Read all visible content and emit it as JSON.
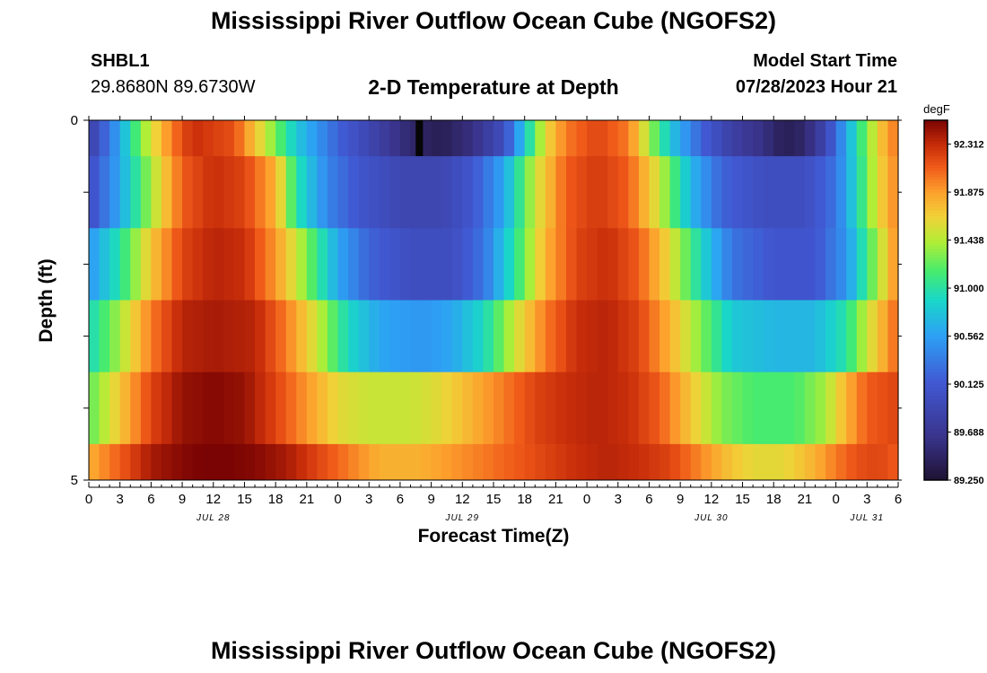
{
  "header": {
    "title": "Mississippi River Outflow Ocean Cube (NGOFS2)",
    "station_id": "SHBL1",
    "station_coords": "29.8680N  89.6730W",
    "subtitle": "2-D Temperature at Depth",
    "model_start_label": "Model Start Time",
    "model_start_value": "07/28/2023 Hour 21"
  },
  "footer": {
    "title_repeat": "Mississippi River Outflow Ocean Cube (NGOFS2)"
  },
  "chart_data": {
    "type": "heatmap",
    "xlabel": "Forecast Time(Z)",
    "ylabel": "Depth (ft)",
    "x_tick_labels": [
      "0",
      "3",
      "6",
      "9",
      "12",
      "15",
      "18",
      "21",
      "0",
      "3",
      "6",
      "9",
      "12",
      "15",
      "18",
      "21",
      "0",
      "3",
      "6",
      "9",
      "12",
      "15",
      "18",
      "21",
      "0",
      "3",
      "6"
    ],
    "x_hours_range": [
      0,
      78
    ],
    "date_labels": [
      {
        "label": "JUL 28",
        "hour": 12
      },
      {
        "label": "JUL 29",
        "hour": 36
      },
      {
        "label": "JUL 30",
        "hour": 60
      },
      {
        "label": "JUL 31",
        "hour": 75
      }
    ],
    "y_tick_labels": [
      "0",
      "5"
    ],
    "ylim": [
      0,
      5
    ],
    "colorbar": {
      "unit": "degF",
      "min": 89.25,
      "max": 92.53,
      "tick_labels": [
        "92.312",
        "91.875",
        "91.438",
        "91.000",
        "90.562",
        "90.125",
        "89.688",
        "89.250"
      ]
    },
    "layers": [
      {
        "depth_range": [
          0,
          0.5
        ],
        "keys": [
          [
            0,
            89.8
          ],
          [
            3,
            90.6
          ],
          [
            5,
            91.3
          ],
          [
            8,
            92.0
          ],
          [
            10,
            92.3
          ],
          [
            14,
            92.15
          ],
          [
            17,
            91.5
          ],
          [
            20,
            90.8
          ],
          [
            24,
            90.2
          ],
          [
            28,
            89.8
          ],
          [
            31,
            89.5
          ],
          [
            34,
            89.4
          ],
          [
            37,
            89.6
          ],
          [
            40,
            90.0
          ],
          [
            42,
            90.8
          ],
          [
            44,
            91.6
          ],
          [
            46,
            92.0
          ],
          [
            49,
            92.2
          ],
          [
            52,
            92.0
          ],
          [
            54,
            91.4
          ],
          [
            56,
            90.8
          ],
          [
            59,
            90.2
          ],
          [
            62,
            89.8
          ],
          [
            65,
            89.6
          ],
          [
            67,
            89.4
          ],
          [
            69,
            89.5
          ],
          [
            71,
            89.9
          ],
          [
            73,
            90.6
          ],
          [
            75,
            91.3
          ],
          [
            77,
            91.9
          ],
          [
            78,
            92.0
          ]
        ],
        "extra": {
          "hours": [
            31.5,
            32.2
          ],
          "value": 89.0
        }
      },
      {
        "depth_range": [
          0.5,
          1.5
        ],
        "keys": [
          [
            0,
            90.0
          ],
          [
            3,
            90.6
          ],
          [
            6,
            91.4
          ],
          [
            9,
            92.1
          ],
          [
            12,
            92.3
          ],
          [
            15,
            92.2
          ],
          [
            18,
            91.8
          ],
          [
            20,
            91.0
          ],
          [
            23,
            90.4
          ],
          [
            26,
            90.1
          ],
          [
            30,
            89.9
          ],
          [
            34,
            89.9
          ],
          [
            37,
            90.1
          ],
          [
            40,
            90.6
          ],
          [
            43,
            91.5
          ],
          [
            46,
            92.1
          ],
          [
            49,
            92.25
          ],
          [
            52,
            92.1
          ],
          [
            55,
            91.5
          ],
          [
            58,
            90.7
          ],
          [
            61,
            90.2
          ],
          [
            65,
            90.0
          ],
          [
            69,
            90.0
          ],
          [
            72,
            90.3
          ],
          [
            74,
            90.9
          ],
          [
            76,
            91.6
          ],
          [
            78,
            92.0
          ]
        ]
      },
      {
        "depth_range": [
          1.5,
          2.5
        ],
        "keys": [
          [
            0,
            90.5
          ],
          [
            3,
            91.0
          ],
          [
            6,
            91.7
          ],
          [
            9,
            92.2
          ],
          [
            12,
            92.35
          ],
          [
            15,
            92.3
          ],
          [
            18,
            91.9
          ],
          [
            21,
            91.3
          ],
          [
            24,
            90.6
          ],
          [
            27,
            90.2
          ],
          [
            31,
            90.0
          ],
          [
            35,
            90.0
          ],
          [
            38,
            90.3
          ],
          [
            41,
            91.0
          ],
          [
            44,
            91.8
          ],
          [
            47,
            92.2
          ],
          [
            50,
            92.3
          ],
          [
            53,
            92.1
          ],
          [
            56,
            91.6
          ],
          [
            59,
            90.9
          ],
          [
            62,
            90.3
          ],
          [
            66,
            90.1
          ],
          [
            70,
            90.1
          ],
          [
            73,
            90.5
          ],
          [
            75,
            91.1
          ],
          [
            77,
            91.7
          ],
          [
            78,
            92.0
          ]
        ]
      },
      {
        "depth_range": [
          2.5,
          3.5
        ],
        "keys": [
          [
            0,
            90.9
          ],
          [
            3,
            91.4
          ],
          [
            6,
            92.0
          ],
          [
            9,
            92.35
          ],
          [
            12,
            92.4
          ],
          [
            16,
            92.35
          ],
          [
            19,
            92.0
          ],
          [
            22,
            91.5
          ],
          [
            25,
            90.9
          ],
          [
            28,
            90.6
          ],
          [
            32,
            90.5
          ],
          [
            35,
            90.6
          ],
          [
            38,
            90.9
          ],
          [
            41,
            91.5
          ],
          [
            44,
            92.0
          ],
          [
            47,
            92.3
          ],
          [
            50,
            92.35
          ],
          [
            53,
            92.2
          ],
          [
            56,
            91.8
          ],
          [
            59,
            91.3
          ],
          [
            62,
            90.8
          ],
          [
            66,
            90.7
          ],
          [
            70,
            90.7
          ],
          [
            73,
            91.0
          ],
          [
            75,
            91.5
          ],
          [
            77,
            91.9
          ],
          [
            78,
            92.1
          ]
        ]
      },
      {
        "depth_range": [
          3.5,
          4.5
        ],
        "keys": [
          [
            0,
            91.2
          ],
          [
            3,
            91.7
          ],
          [
            6,
            92.2
          ],
          [
            9,
            92.45
          ],
          [
            12,
            92.5
          ],
          [
            15,
            92.45
          ],
          [
            18,
            92.2
          ],
          [
            21,
            91.9
          ],
          [
            24,
            91.6
          ],
          [
            27,
            91.5
          ],
          [
            31,
            91.5
          ],
          [
            34,
            91.6
          ],
          [
            37,
            91.8
          ],
          [
            40,
            92.0
          ],
          [
            43,
            92.2
          ],
          [
            46,
            92.3
          ],
          [
            49,
            92.35
          ],
          [
            52,
            92.3
          ],
          [
            55,
            92.1
          ],
          [
            58,
            91.7
          ],
          [
            61,
            91.3
          ],
          [
            64,
            91.15
          ],
          [
            68,
            91.15
          ],
          [
            71,
            91.4
          ],
          [
            73,
            91.8
          ],
          [
            75,
            92.1
          ],
          [
            78,
            92.2
          ]
        ]
      },
      {
        "depth_range": [
          4.5,
          5
        ],
        "keys": [
          [
            0,
            91.8
          ],
          [
            3,
            92.1
          ],
          [
            6,
            92.4
          ],
          [
            9,
            92.5
          ],
          [
            12,
            92.55
          ],
          [
            16,
            92.5
          ],
          [
            19,
            92.4
          ],
          [
            22,
            92.2
          ],
          [
            25,
            92.0
          ],
          [
            28,
            91.8
          ],
          [
            32,
            91.8
          ],
          [
            35,
            91.9
          ],
          [
            38,
            92.0
          ],
          [
            41,
            92.1
          ],
          [
            44,
            92.2
          ],
          [
            47,
            92.3
          ],
          [
            50,
            92.35
          ],
          [
            53,
            92.3
          ],
          [
            56,
            92.2
          ],
          [
            59,
            91.95
          ],
          [
            62,
            91.7
          ],
          [
            64,
            91.6
          ],
          [
            67,
            91.6
          ],
          [
            70,
            91.8
          ],
          [
            72,
            92.0
          ],
          [
            74,
            92.15
          ],
          [
            76,
            92.2
          ],
          [
            78,
            92.1
          ]
        ]
      }
    ]
  }
}
